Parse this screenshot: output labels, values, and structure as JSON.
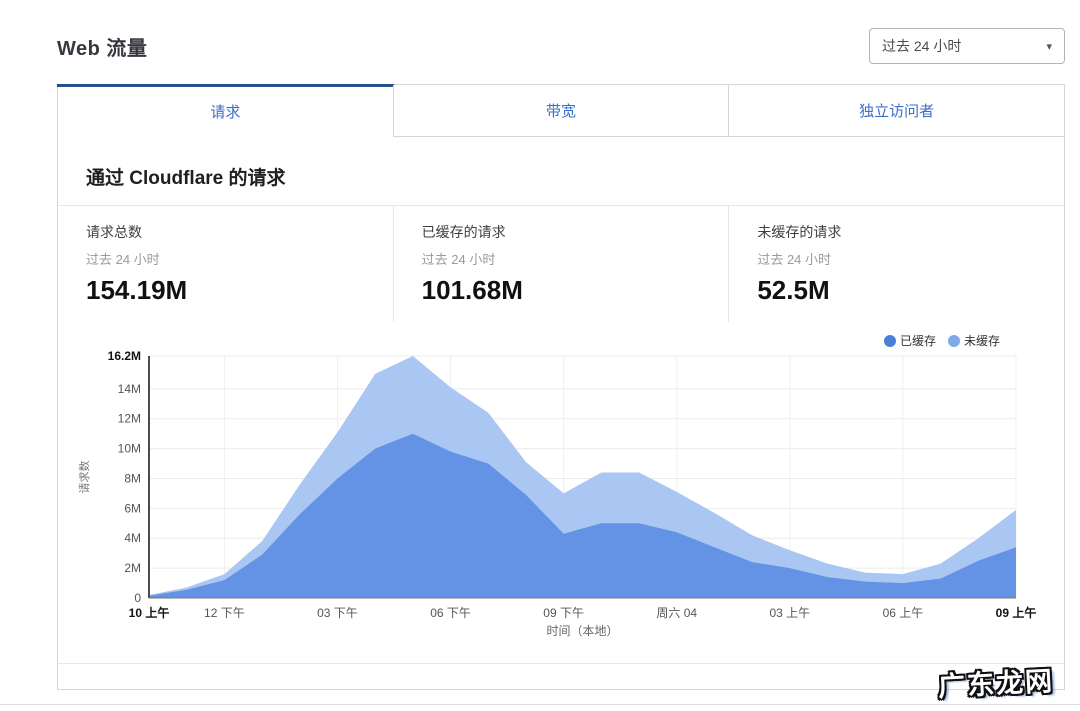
{
  "page": {
    "title": "Web 流量"
  },
  "time_range_dropdown": {
    "value": "过去 24 小时",
    "caret": "▾"
  },
  "tabs": [
    {
      "label": "请求",
      "active": true
    },
    {
      "label": "带宽",
      "active": false
    },
    {
      "label": "独立访问者",
      "active": false
    }
  ],
  "section": {
    "heading": "通过 Cloudflare 的请求"
  },
  "stats": [
    {
      "label": "请求总数",
      "period": "过去 24 小时",
      "value": "154.19M"
    },
    {
      "label": "已缓存的请求",
      "period": "过去 24 小时",
      "value": "101.68M"
    },
    {
      "label": "未缓存的请求",
      "period": "过去 24 小时",
      "value": "52.5M"
    }
  ],
  "chart_data": {
    "type": "area",
    "stacked": true,
    "xlabel": "时间（本地）",
    "ylabel": "请求数",
    "ylim": [
      0,
      16.2
    ],
    "grid": true,
    "legend_position": "top-right",
    "x_hours": [
      "10 上午",
      "11 上午",
      "12 下午",
      "01 下午",
      "02 下午",
      "03 下午",
      "04 下午",
      "05 下午",
      "06 下午",
      "07 下午",
      "08 下午",
      "09 下午",
      "10 下午",
      "11 下午",
      "周六 04",
      "01 上午",
      "02 上午",
      "03 上午",
      "04 上午",
      "05 上午",
      "06 上午",
      "07 上午",
      "08 上午",
      "09 上午"
    ],
    "series": [
      {
        "name": "已缓存",
        "color": "#4a80d6",
        "area_color": "#6492e4",
        "values": [
          0.15,
          0.55,
          1.2,
          2.9,
          5.6,
          8.0,
          10.0,
          11.0,
          9.8,
          9.0,
          6.9,
          4.3,
          5.0,
          5.0,
          4.4,
          3.4,
          2.4,
          2.0,
          1.4,
          1.1,
          1.0,
          1.3,
          2.5,
          3.4
        ]
      },
      {
        "name": "未缓存",
        "color": "#7fa9e8",
        "area_color": "#a9c7f2",
        "values": [
          0.05,
          0.15,
          0.4,
          0.9,
          2.0,
          3.1,
          5.0,
          5.2,
          4.3,
          3.4,
          2.2,
          2.7,
          3.4,
          3.4,
          2.7,
          2.3,
          1.8,
          1.2,
          0.9,
          0.6,
          0.6,
          1.0,
          1.5,
          2.5
        ]
      }
    ],
    "yticks": [
      {
        "label": "0",
        "value": 0,
        "bold": false
      },
      {
        "label": "2M",
        "value": 2,
        "bold": false
      },
      {
        "label": "4M",
        "value": 4,
        "bold": false
      },
      {
        "label": "6M",
        "value": 6,
        "bold": false
      },
      {
        "label": "8M",
        "value": 8,
        "bold": false
      },
      {
        "label": "10M",
        "value": 10,
        "bold": false
      },
      {
        "label": "12M",
        "value": 12,
        "bold": false
      },
      {
        "label": "14M",
        "value": 14,
        "bold": false
      },
      {
        "label": "16.2M",
        "value": 16.2,
        "bold": true
      }
    ],
    "xticks": [
      {
        "label": "10 上午",
        "index": 0,
        "bold": true
      },
      {
        "label": "12 下午",
        "index": 2,
        "bold": false
      },
      {
        "label": "03 下午",
        "index": 5,
        "bold": false
      },
      {
        "label": "06 下午",
        "index": 8,
        "bold": false
      },
      {
        "label": "09 下午",
        "index": 11,
        "bold": false
      },
      {
        "label": "周六 04",
        "index": 14,
        "bold": false
      },
      {
        "label": "03 上午",
        "index": 17,
        "bold": false
      },
      {
        "label": "06 上午",
        "index": 20,
        "bold": false
      },
      {
        "label": "09 上午",
        "index": 23,
        "bold": true
      }
    ]
  },
  "watermark": {
    "text": "广东龙网"
  }
}
